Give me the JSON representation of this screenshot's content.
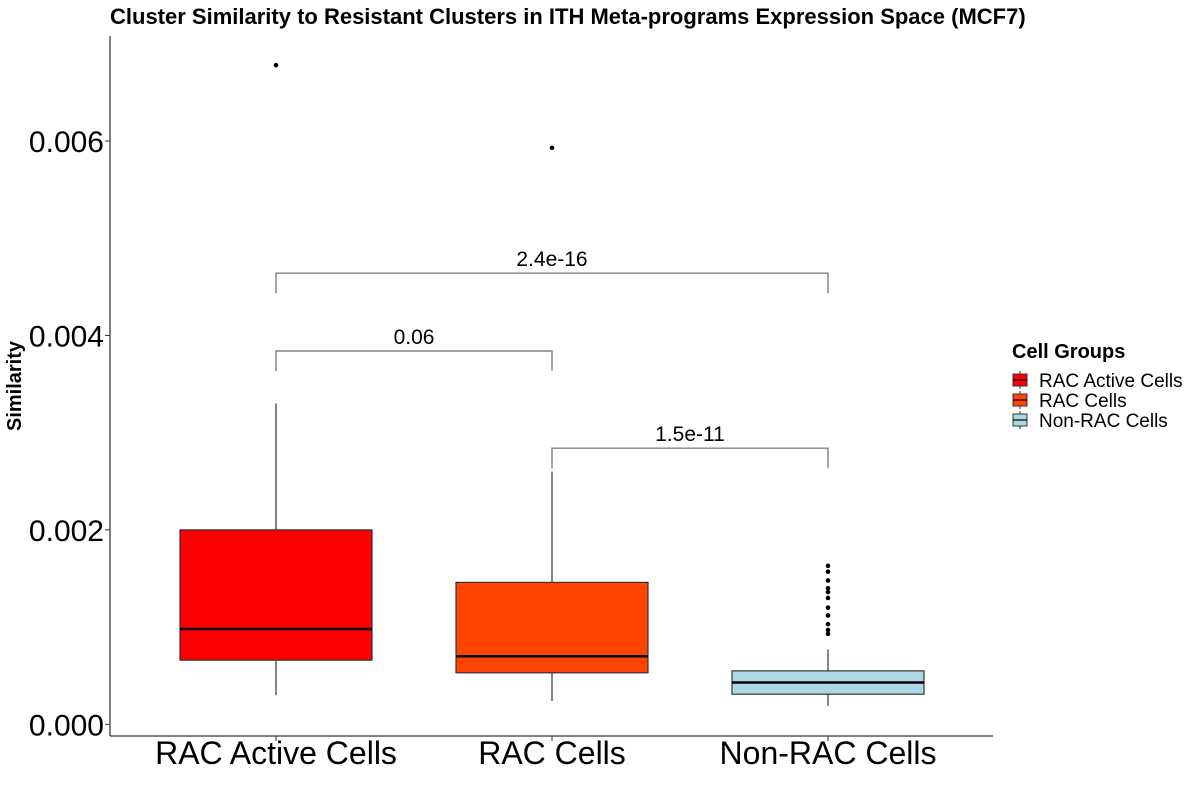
{
  "chart_data": {
    "type": "box",
    "title": "Cluster Similarity to Resistant Clusters in ITH Meta-programs Expression Space (MCF7)",
    "xlabel": "",
    "ylabel": "Similarity",
    "ylim": [
      -0.00012,
      0.00708
    ],
    "yticks": [
      "0.000",
      "0.002",
      "0.004",
      "0.006"
    ],
    "ytick_values": [
      0,
      0.002,
      0.004,
      0.006
    ],
    "categories": [
      "RAC Active Cells",
      "RAC Cells",
      "Non-RAC Cells"
    ],
    "boxes": [
      {
        "group": "RAC Active Cells",
        "color": "#ff0000",
        "whisker_low": 0.0003,
        "q1": 0.00066,
        "median": 0.00098,
        "q3": 0.002,
        "whisker_high": 0.0033,
        "outliers": [
          0.00678
        ]
      },
      {
        "group": "RAC Cells",
        "color": "#ff4500",
        "whisker_low": 0.00024,
        "q1": 0.00053,
        "median": 0.0007,
        "q3": 0.00146,
        "whisker_high": 0.0026,
        "outliers": [
          0.00593
        ]
      },
      {
        "group": "Non-RAC Cells",
        "color": "#add8e6",
        "whisker_low": 0.00019,
        "q1": 0.00031,
        "median": 0.00043,
        "q3": 0.00055,
        "whisker_high": 0.00077,
        "outliers": [
          0.00093,
          0.00097,
          0.00103,
          0.00112,
          0.0012,
          0.0013,
          0.00136,
          0.0014,
          0.00148,
          0.00157,
          0.00163
        ]
      }
    ],
    "comparisons": [
      {
        "from": 0,
        "to": 1,
        "label": "0.06",
        "y": 0.00384
      },
      {
        "from": 0,
        "to": 2,
        "label": "2.4e-16",
        "y": 0.00464
      },
      {
        "from": 1,
        "to": 2,
        "label": "1.5e-11",
        "y": 0.00284
      }
    ],
    "legend": {
      "title": "Cell Groups",
      "position": "right",
      "items": [
        {
          "label": "RAC Active Cells",
          "color": "#ff0000"
        },
        {
          "label": "RAC Cells",
          "color": "#ff4500"
        },
        {
          "label": "Non-RAC Cells",
          "color": "#add8e6"
        }
      ]
    },
    "grid": false
  }
}
